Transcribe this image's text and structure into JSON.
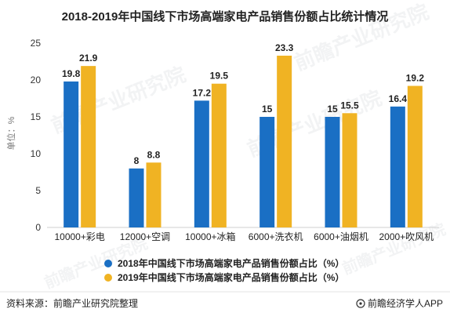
{
  "chart_data": {
    "type": "bar",
    "title": "2018-2019年中国线下市场高端家电产品销售份额占比统计情况",
    "xlabel": "",
    "ylabel": "单位：%",
    "ylim": [
      0,
      25
    ],
    "yticks": [
      0,
      5,
      10,
      15,
      20,
      25
    ],
    "categories": [
      "10000+彩电",
      "12000+空调",
      "10000+冰箱",
      "6000+洗衣机",
      "6000+油烟机",
      "2000+吹风机"
    ],
    "series": [
      {
        "name": "2018年中国线下市场高端家电产品销售份额占比（%）",
        "values": [
          19.8,
          8,
          17.2,
          15,
          15,
          16.4
        ],
        "labels": [
          "19.8",
          "8",
          "17.2",
          "15",
          "15",
          "16.4"
        ],
        "color": "#1a6fc4"
      },
      {
        "name": "2019年中国线下市场高端家电产品销售份额占比（%）",
        "values": [
          21.9,
          8.8,
          19.5,
          23.3,
          15.5,
          19.2
        ],
        "labels": [
          "21.9",
          "8.8",
          "19.5",
          "23.3",
          "15.5",
          "19.2"
        ],
        "color": "#f0b323"
      }
    ],
    "grid": false,
    "legend": "bottom"
  },
  "footer": {
    "source": "资料来源：前瞻产业研究院整理",
    "brand": "前瞻经济学人APP",
    "brand_icon": "at-icon"
  },
  "watermark_text": "前瞻产业研究院"
}
